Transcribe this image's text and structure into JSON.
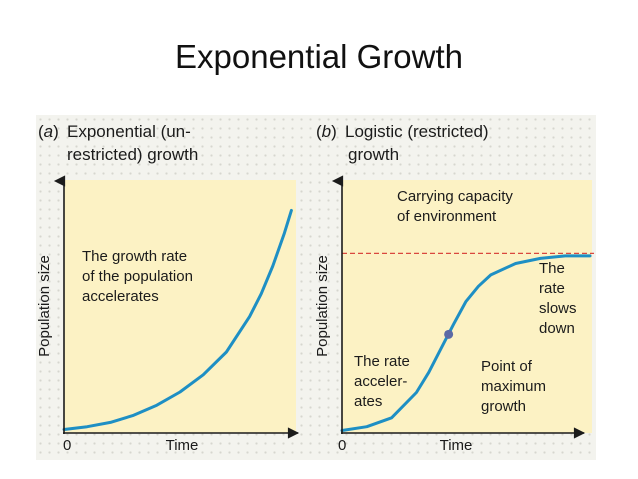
{
  "slide": {
    "title": "Exponential Growth"
  },
  "colors": {
    "plot_bg": "#fcf2c4",
    "curve": "#1e8fc4",
    "capacity_line": "#d9473e",
    "marker": "#5c6aa5",
    "axis": "#1b1b1b"
  },
  "chart_data": [
    {
      "type": "line",
      "panel_letter": "a",
      "title_lines": [
        "Exponential (un-",
        "restricted) growth"
      ],
      "xlabel": "Time",
      "ylabel": "Population size",
      "x_tick_label": "0",
      "xlim": [
        0,
        10
      ],
      "ylim": [
        0,
        10
      ],
      "grid": false,
      "series": [
        {
          "x": [
            0,
            1,
            2,
            3,
            4,
            5,
            6,
            7,
            8,
            8.5,
            9,
            9.5,
            9.8
          ],
          "y": [
            0.14,
            0.25,
            0.42,
            0.7,
            1.1,
            1.62,
            2.3,
            3.2,
            4.6,
            5.5,
            6.6,
            7.9,
            8.8
          ]
        }
      ],
      "annotations": [
        {
          "lines": [
            "The growth rate",
            "of the population",
            "accelerates"
          ]
        }
      ]
    },
    {
      "type": "line",
      "panel_letter": "b",
      "title_lines": [
        "Logistic (restricted)",
        "growth"
      ],
      "xlabel": "Time",
      "ylabel": "Population size",
      "x_tick_label": "0",
      "xlim": [
        0,
        10
      ],
      "ylim": [
        0,
        10
      ],
      "grid": false,
      "carrying_capacity": 7.1,
      "series": [
        {
          "x": [
            0,
            1,
            2,
            3,
            3.5,
            4,
            4.5,
            5,
            5.5,
            6,
            7,
            8,
            9,
            10
          ],
          "y": [
            0.1,
            0.25,
            0.6,
            1.6,
            2.4,
            3.35,
            4.3,
            5.2,
            5.8,
            6.25,
            6.7,
            6.9,
            7.0,
            7.0
          ]
        }
      ],
      "inflection_point": {
        "x": 4.3,
        "y": 3.9
      },
      "annotations": [
        {
          "lines": [
            "Carrying capacity",
            "of environment"
          ]
        },
        {
          "lines": [
            "The",
            "rate",
            "slows",
            "down"
          ]
        },
        {
          "lines": [
            "The rate",
            "acceler-",
            "ates"
          ]
        },
        {
          "lines": [
            "Point of",
            "maximum",
            "growth"
          ]
        }
      ]
    }
  ]
}
